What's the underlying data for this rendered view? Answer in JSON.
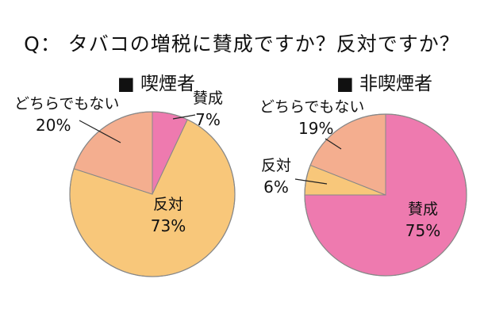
{
  "title": "Q： タバコの増税に賛成ですか？反対ですか？",
  "colors": {
    "賛成": "#ee7aaf",
    "反対": "#f8c77a",
    "どちらでもない": "#f4ae8f",
    "outline": "#888888",
    "leader": "#222222"
  },
  "chart_data": [
    {
      "type": "pie",
      "title": "■ 喫煙者",
      "slices": [
        {
          "label": "賛成",
          "value": 7,
          "value_label": "7%"
        },
        {
          "label": "反対",
          "value": 73,
          "value_label": "73%"
        },
        {
          "label": "どちらでもない",
          "value": 20,
          "value_label": "20%"
        }
      ]
    },
    {
      "type": "pie",
      "title": "■ 非喫煙者",
      "slices": [
        {
          "label": "賛成",
          "value": 75,
          "value_label": "75%"
        },
        {
          "label": "反対",
          "value": 6,
          "value_label": "6%"
        },
        {
          "label": "どちらでもない",
          "value": 19,
          "value_label": "19%"
        }
      ]
    }
  ]
}
